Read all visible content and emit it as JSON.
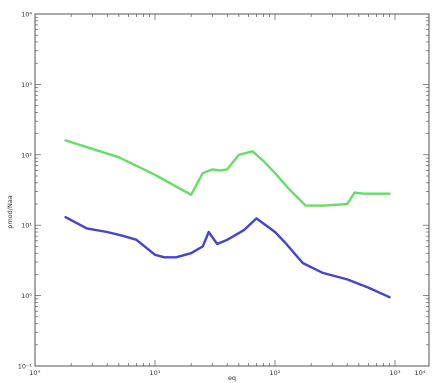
{
  "chart_data": {
    "type": "line",
    "title": "",
    "xlabel": "eq",
    "ylabel": "pmod/Naa",
    "xscale": "log",
    "yscale": "log",
    "xlim": [
      1.0,
      1000.0
    ],
    "ylim": [
      0.1,
      10000.0
    ],
    "x_tick_labels": [
      "10°",
      "10¹",
      "10²",
      "10³",
      "10⁴"
    ],
    "y_tick_labels": [
      "10⁻¹",
      "10⁰",
      "10¹",
      "10²",
      "10³",
      "10⁴"
    ],
    "grid": false,
    "legend": "none",
    "series": [
      {
        "color": "#66dd66",
        "x": [
          1.8,
          5.0,
          10.0,
          20.0,
          25.0,
          30.0,
          35.0,
          40.0,
          50.0,
          65.0,
          80.0,
          100.0,
          130.0,
          180.0,
          260.0,
          400.0,
          460.0,
          550.0,
          750.0,
          900.0
        ],
        "y": [
          160,
          92,
          52,
          27,
          55,
          62,
          60,
          62,
          100,
          112,
          82,
          55,
          33,
          19,
          19,
          20,
          29,
          28,
          28,
          28
        ]
      },
      {
        "color": "#4444cc",
        "x": [
          1.8,
          2.7,
          4.0,
          5.5,
          7.0,
          10.0,
          12.0,
          15.0,
          20.0,
          25.0,
          28.0,
          33.0,
          40.0,
          55.0,
          70.0,
          100.0,
          120.0,
          170.0,
          250.0,
          400.0,
          600.0,
          900.0
        ],
        "y": [
          13,
          9,
          8,
          7,
          6.2,
          3.8,
          3.5,
          3.5,
          4.0,
          5.0,
          8.0,
          5.4,
          6.2,
          8.5,
          12.5,
          8.0,
          5.8,
          2.9,
          2.1,
          1.7,
          1.3,
          0.95
        ]
      }
    ]
  }
}
